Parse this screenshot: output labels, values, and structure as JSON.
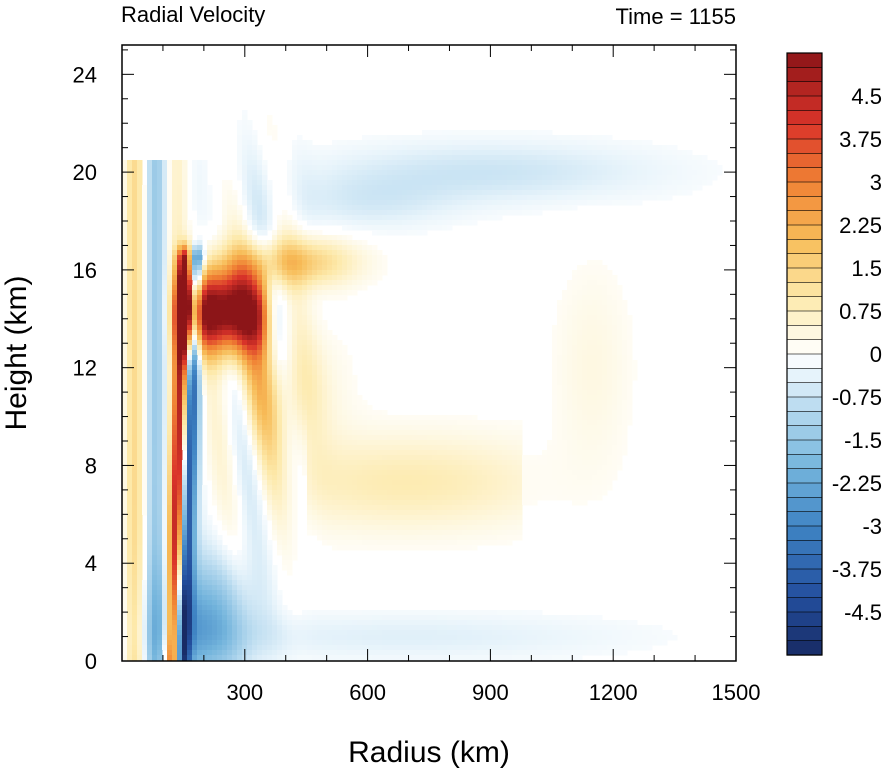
{
  "chart_data": {
    "type": "heatmap",
    "title": "Radial Velocity",
    "subtitle": "Time = 1155",
    "xlabel": "Radius (km)",
    "ylabel": "Height (km)",
    "xlim": [
      0,
      1500
    ],
    "ylim": [
      0,
      25.2
    ],
    "x_ticks": [
      300,
      600,
      900,
      1200,
      1500
    ],
    "y_ticks": [
      0,
      4,
      8,
      12,
      16,
      20,
      24
    ],
    "grid": false,
    "colorbar": {
      "min": -5.25,
      "max": 5.25,
      "step": 0.25,
      "labels": [
        "4.5",
        "3.75",
        "3",
        "2.25",
        "1.5",
        "0.75",
        "0",
        "-0.75",
        "-1.5",
        "-2.25",
        "-3",
        "-3.75",
        "-4.5"
      ],
      "label_values": [
        4.5,
        3.75,
        3,
        2.25,
        1.5,
        0.75,
        0,
        -0.75,
        -1.5,
        -2.25,
        -3,
        -3.75,
        -4.5
      ],
      "low_color": "#1b2d6b",
      "zero_color": "#ffffff",
      "high_color": "#8c1518"
    },
    "features": [
      {
        "name": "strong-outflow",
        "x_range": [
          160,
          370
        ],
        "z_range": [
          12,
          16.5
        ],
        "value": 5.25
      },
      {
        "name": "eyewall-outflow-strip",
        "x_range": [
          110,
          170
        ],
        "z_range": [
          1,
          16
        ],
        "value": 5
      },
      {
        "name": "eyewall-inflow-strip",
        "x_range": [
          130,
          190
        ],
        "z_range": [
          0,
          16
        ],
        "value": -5
      },
      {
        "name": "upper-outflow-lobe",
        "x_range": [
          300,
          1250
        ],
        "z_range": [
          6,
          16
        ],
        "value": 1.0
      },
      {
        "name": "upper-inflow-layer",
        "x_range": [
          350,
          1450
        ],
        "z_range": [
          18,
          21
        ],
        "value": -0.8
      },
      {
        "name": "boundary-layer-inflow",
        "x_range": [
          100,
          1450
        ],
        "z_range": [
          0,
          2
        ],
        "value": -0.6
      }
    ]
  }
}
